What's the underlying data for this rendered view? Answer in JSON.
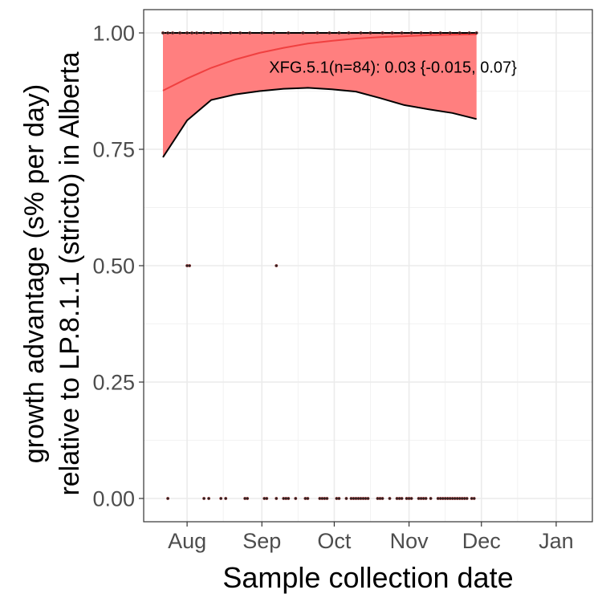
{
  "chart_data": {
    "type": "scatter",
    "xlabel": "Sample collection date",
    "ylabel_lines": [
      "growth advantage (s% per day)",
      "relative to LP.8.1.1 (stricto) in Alberta"
    ],
    "x_ticks": [
      "Aug",
      "Sep",
      "Oct",
      "Nov",
      "Dec",
      "Jan"
    ],
    "x_tick_dates": [
      "2025-08-01",
      "2025-09-01",
      "2025-10-01",
      "2025-11-01",
      "2025-12-01",
      "2026-01-01"
    ],
    "xlim": [
      "2025-07-14",
      "2026-01-16"
    ],
    "y_ticks": [
      "0.00",
      "0.25",
      "0.50",
      "0.75",
      "1.00"
    ],
    "y_tick_values": [
      0,
      0.25,
      0.5,
      0.75,
      1.0
    ],
    "ylim": [
      -0.05,
      1.05
    ],
    "grid": true,
    "annotation": "XFG.5.1(n=84): 0.03 {-0.015, 0.07}",
    "series": [
      {
        "fit_dates": [
          "2025-07-22",
          "2025-08-01",
          "2025-08-11",
          "2025-08-21",
          "2025-08-31",
          "2025-09-10",
          "2025-09-20",
          "2025-09-30",
          "2025-10-10",
          "2025-10-20",
          "2025-10-30",
          "2025-11-09",
          "2025-11-19",
          "2025-11-29"
        ],
        "fit": [
          0.876,
          0.902,
          0.925,
          0.943,
          0.957,
          0.968,
          0.977,
          0.983,
          0.988,
          0.991,
          0.993,
          0.995,
          0.996,
          0.997
        ],
        "ci_lower": [
          0.733,
          0.812,
          0.856,
          0.868,
          0.875,
          0.88,
          0.882,
          0.879,
          0.874,
          0.86,
          0.845,
          0.836,
          0.828,
          0.815
        ],
        "ci_upper": [
          1.0,
          1.0,
          1.0,
          1.0,
          1.0,
          1.0,
          1.0,
          1.0,
          1.0,
          1.0,
          1.0,
          1.0,
          1.0,
          1.0
        ],
        "fill_color": "#ff7f7f",
        "line_color": "#f04040"
      }
    ],
    "points_y1": [
      "2025-07-22",
      "2025-07-24",
      "2025-07-26",
      "2025-07-29",
      "2025-08-01",
      "2025-08-03",
      "2025-08-05",
      "2025-08-08",
      "2025-08-11",
      "2025-08-15",
      "2025-08-19",
      "2025-08-23",
      "2025-08-27",
      "2025-09-01",
      "2025-09-06",
      "2025-09-12",
      "2025-09-18",
      "2025-09-24",
      "2025-09-29",
      "2025-10-03",
      "2025-10-07",
      "2025-10-12",
      "2025-10-16",
      "2025-10-21",
      "2025-10-25",
      "2025-10-29",
      "2025-11-02",
      "2025-11-06",
      "2025-11-10",
      "2025-11-14",
      "2025-11-18",
      "2025-11-22",
      "2025-11-26",
      "2025-11-29"
    ],
    "points_y05": [
      "2025-08-01",
      "2025-08-02",
      "2025-09-07"
    ],
    "points_y0": [
      "2025-07-24",
      "2025-08-08",
      "2025-08-10",
      "2025-08-15",
      "2025-08-17",
      "2025-08-25",
      "2025-08-26",
      "2025-09-02",
      "2025-09-03",
      "2025-09-07",
      "2025-09-10",
      "2025-09-11",
      "2025-09-12",
      "2025-09-15",
      "2025-09-19",
      "2025-09-20",
      "2025-09-25",
      "2025-09-26",
      "2025-09-27",
      "2025-09-28",
      "2025-10-02",
      "2025-10-03",
      "2025-10-06",
      "2025-10-08",
      "2025-10-09",
      "2025-10-10",
      "2025-10-11",
      "2025-10-12",
      "2025-10-13",
      "2025-10-14",
      "2025-10-15",
      "2025-10-19",
      "2025-10-20",
      "2025-10-21",
      "2025-10-24",
      "2025-10-27",
      "2025-10-28",
      "2025-10-29",
      "2025-10-31",
      "2025-11-01",
      "2025-11-02",
      "2025-11-05",
      "2025-11-06",
      "2025-11-07",
      "2025-11-08",
      "2025-11-10",
      "2025-11-13",
      "2025-11-14",
      "2025-11-15",
      "2025-11-16",
      "2025-11-17",
      "2025-11-18",
      "2025-11-19",
      "2025-11-20",
      "2025-11-21",
      "2025-11-22",
      "2025-11-23",
      "2025-11-24",
      "2025-11-25",
      "2025-11-27",
      "2025-11-28"
    ]
  }
}
